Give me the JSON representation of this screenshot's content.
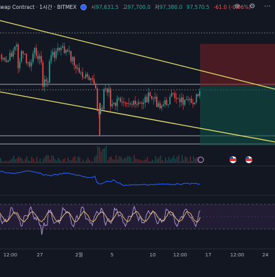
{
  "legend": {
    "symbol": "wap Contract · 1시간 · BITMEX",
    "open_label": "시",
    "open_value": "97,631.5",
    "high_label": "고",
    "high_value": "97,700.0",
    "low_label": "저",
    "low_value": "97,380.0",
    "close_value": "97,570.5",
    "change": "-61.0 (-0.06%)"
  },
  "icons": [
    "alert-icon",
    "settings-icon",
    "more-icon"
  ],
  "colors": {
    "background": "#131722",
    "trendline": "#e8e46b",
    "candle_up": "#26a69a",
    "candle_down": "#ef5350",
    "indicator_line": "#2962ff",
    "oscillator_fast": "#b39ddb",
    "oscillator_slow": "#f7c873",
    "stop_zone": "#7a1f25",
    "target_zone": "#0e4f45"
  },
  "x_axis": {
    "labels": [
      "12:00",
      "27",
      "2월",
      "5",
      "10",
      "12:00",
      "17",
      "12:00",
      "24"
    ]
  },
  "markers": [
    "event-marker-1",
    "event-marker-2"
  ]
}
